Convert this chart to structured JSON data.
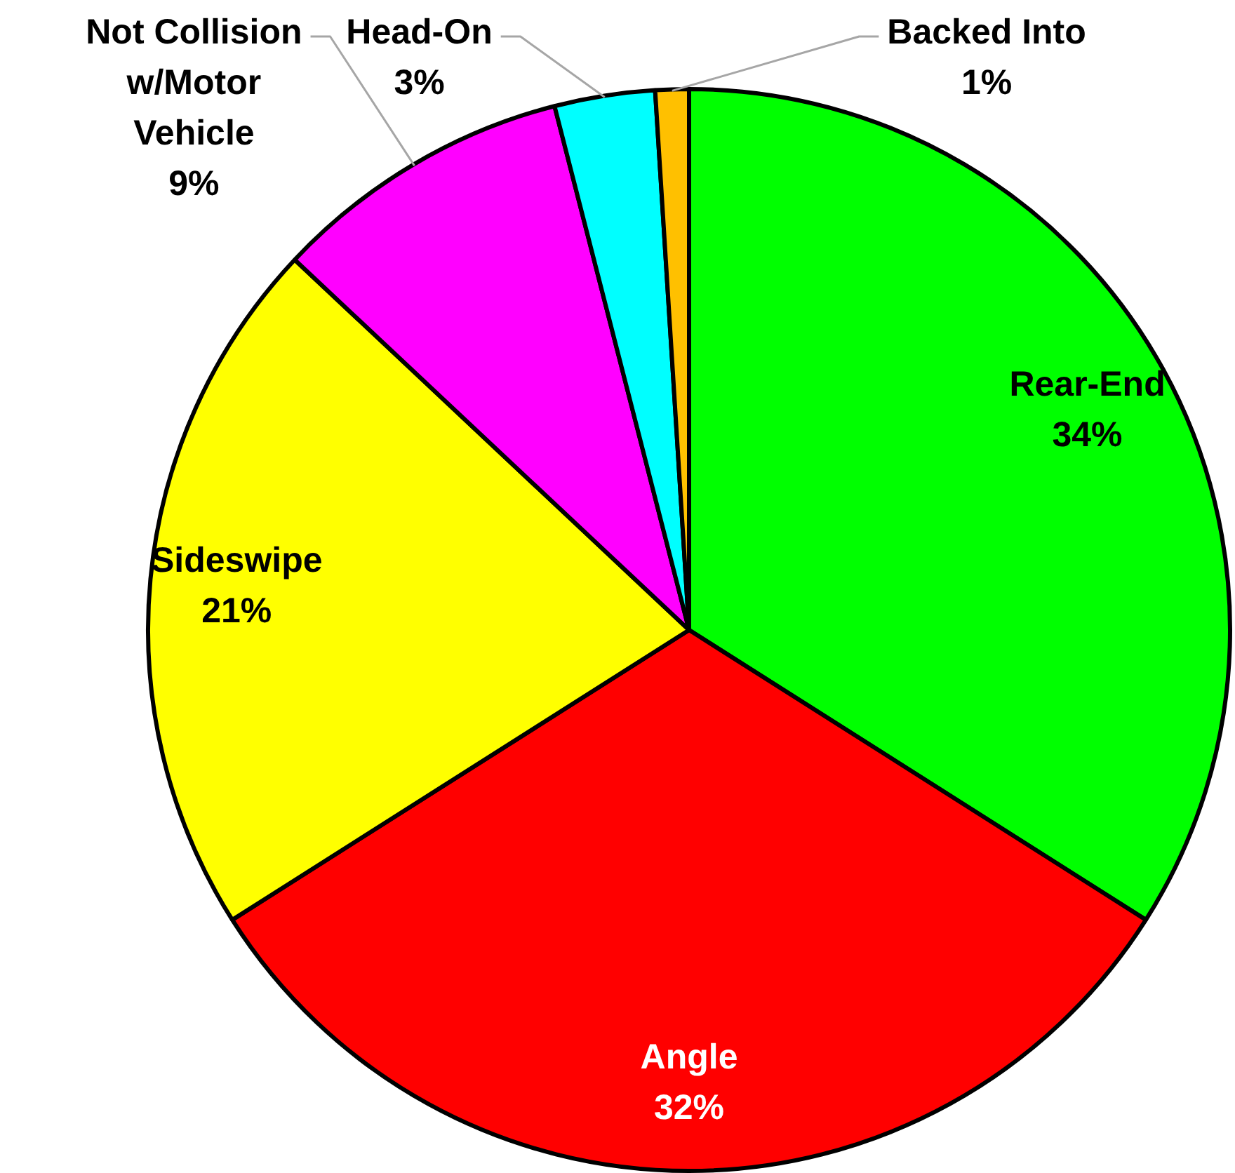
{
  "chart_data": {
    "type": "pie",
    "categories": [
      "Rear-End",
      "Angle",
      "Sideswipe",
      "Not Collision w/Motor Vehicle",
      "Head-On",
      "Backed Into"
    ],
    "values": [
      34,
      32,
      21,
      9,
      3,
      1
    ],
    "colors": [
      "#00ff00",
      "#ff0000",
      "#ffff00",
      "#ff00ff",
      "#00ffff",
      "#ffc000"
    ],
    "value_labels": [
      "34%",
      "32%",
      "21%",
      "9%",
      "3%",
      "1%"
    ]
  }
}
